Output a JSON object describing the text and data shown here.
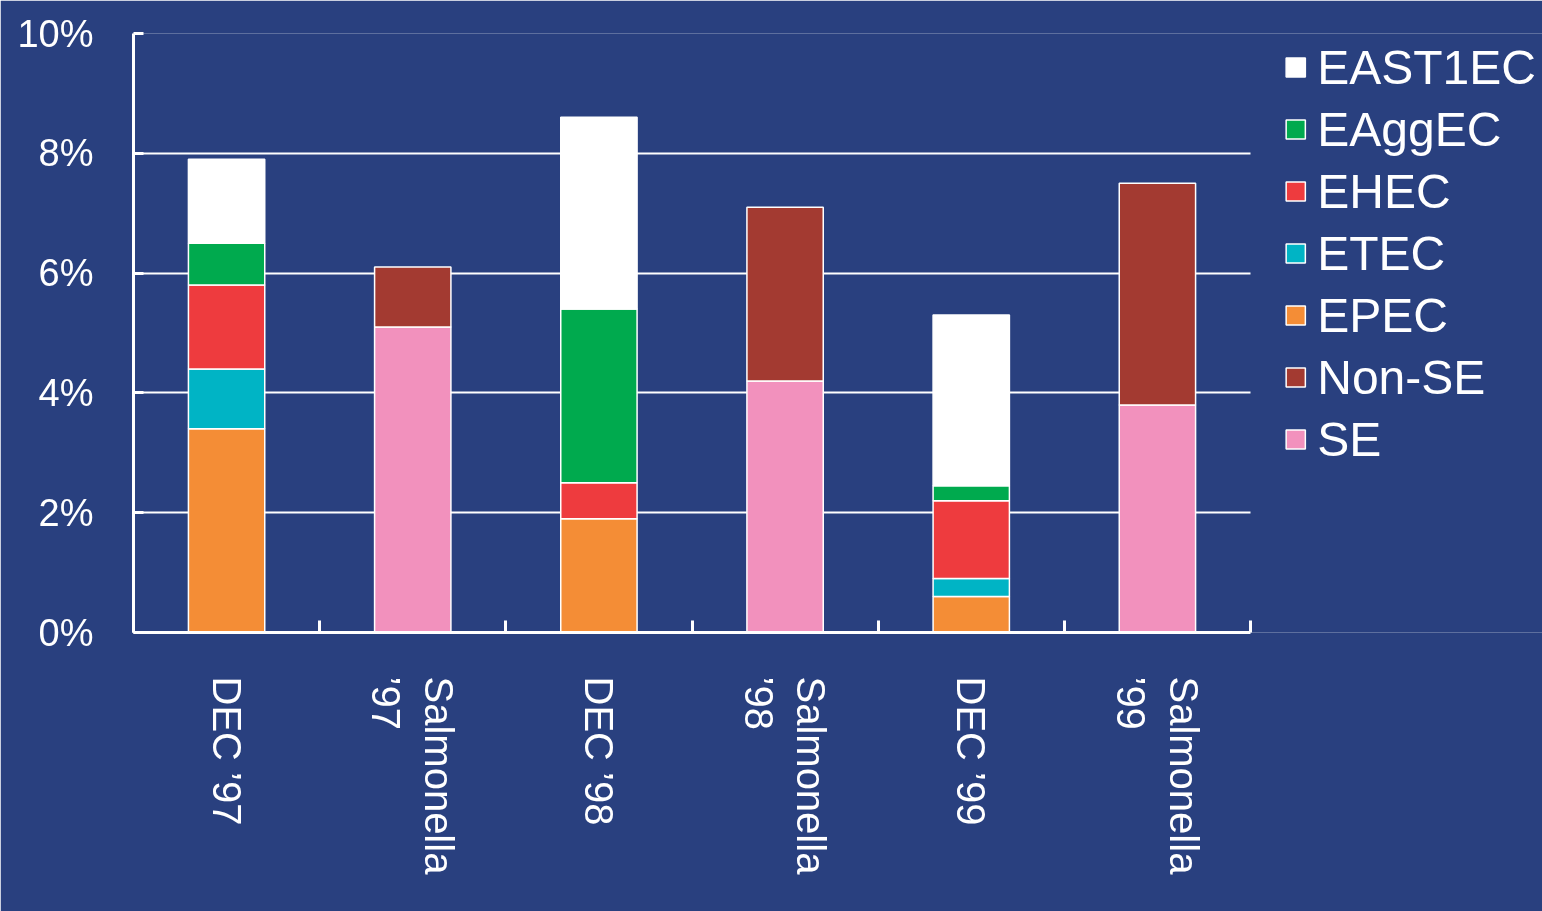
{
  "chart_data": {
    "type": "bar",
    "stacked": true,
    "categories": [
      "DEC ’97",
      "Salmonella\n’97",
      "DEC ’98",
      "Salmonella\n’98",
      "DEC ’99",
      "Salmonella\n’99"
    ],
    "series": [
      {
        "name": "SE",
        "color": "#f291bd",
        "values": [
          null,
          5.1,
          null,
          4.2,
          null,
          3.8
        ]
      },
      {
        "name": "Non-SE",
        "color": "#a33a31",
        "values": [
          null,
          1.0,
          null,
          2.9,
          null,
          3.7
        ]
      },
      {
        "name": "EPEC",
        "color": "#f48d36",
        "values": [
          3.4,
          null,
          1.9,
          null,
          0.6,
          null
        ]
      },
      {
        "name": "ETEC",
        "color": "#00b4c5",
        "values": [
          1.0,
          null,
          null,
          null,
          0.3,
          null
        ]
      },
      {
        "name": "EHEC",
        "color": "#ee3b3e",
        "values": [
          1.4,
          null,
          0.6,
          null,
          1.3,
          null
        ]
      },
      {
        "name": "EAggEC",
        "color": "#00aa4e",
        "values": [
          0.7,
          null,
          2.9,
          null,
          0.25,
          null
        ]
      },
      {
        "name": "EAST1EC",
        "color": "#ffffff",
        "values": [
          1.4,
          null,
          3.2,
          null,
          2.85,
          null
        ]
      }
    ],
    "ylim": [
      0,
      10
    ],
    "yticks": [
      {
        "value": 0,
        "label": "0%"
      },
      {
        "value": 2,
        "label": "2%"
      },
      {
        "value": 4,
        "label": "4%"
      },
      {
        "value": 6,
        "label": "6%"
      },
      {
        "value": 8,
        "label": "8%"
      },
      {
        "value": 10,
        "label": "10%"
      }
    ],
    "grid": "y",
    "legend": "top right"
  }
}
